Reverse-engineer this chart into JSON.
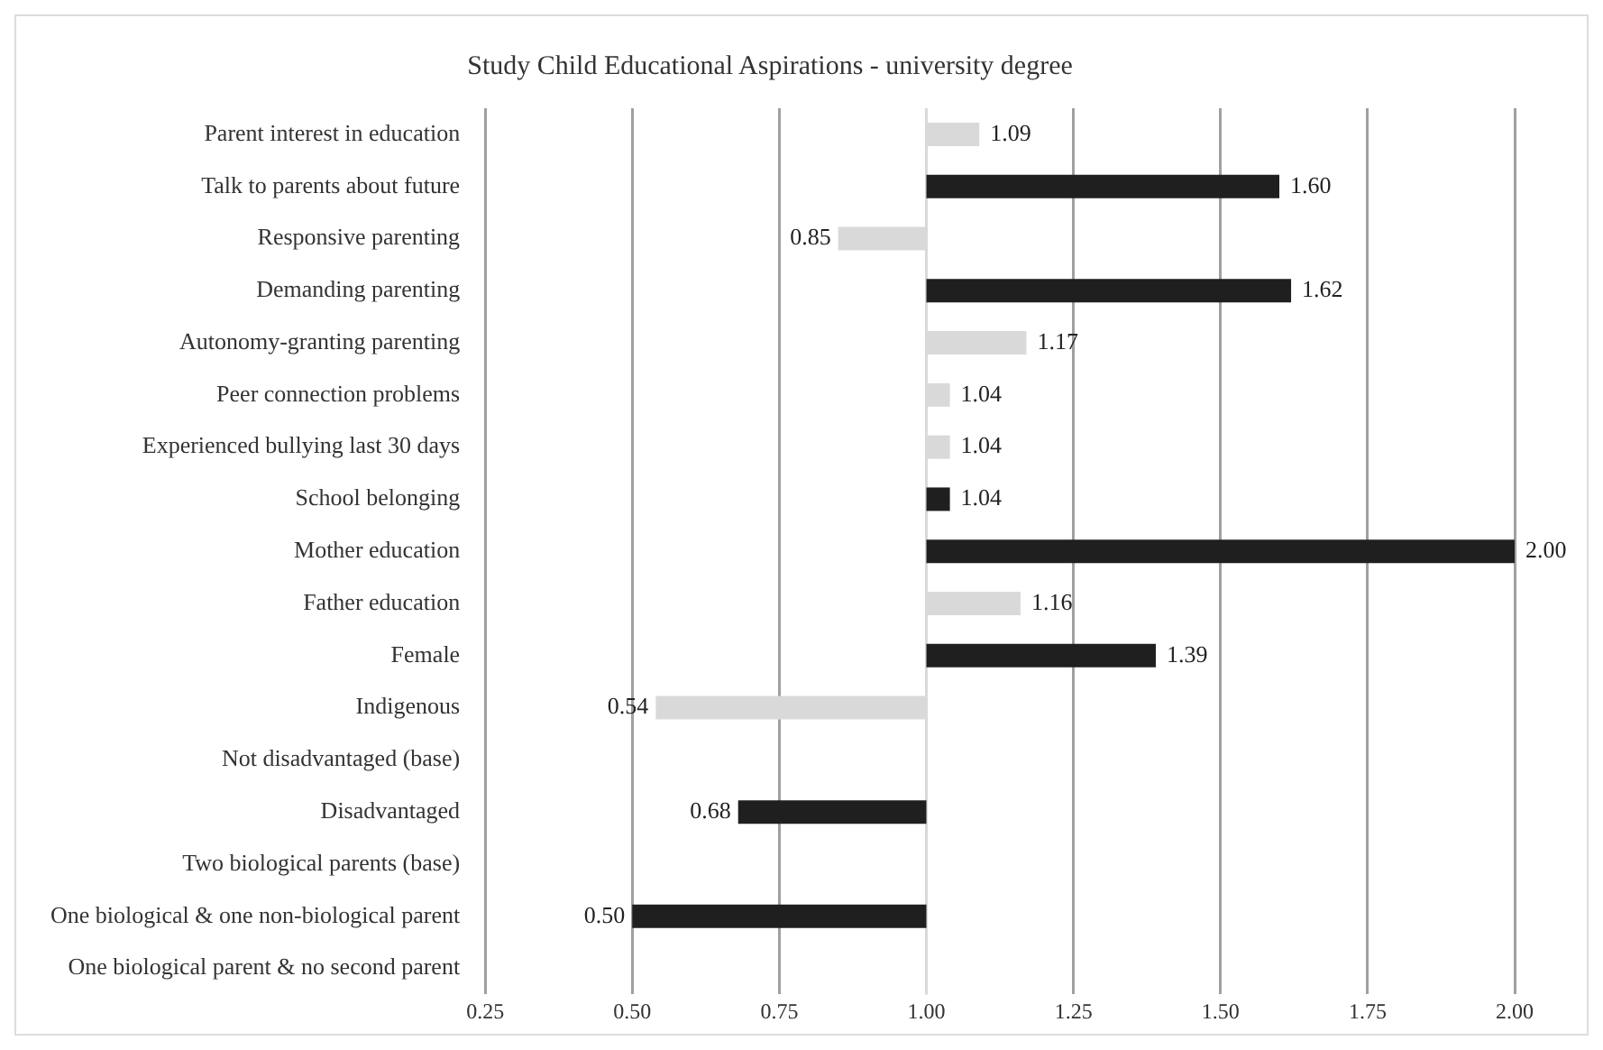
{
  "chart_data": {
    "type": "bar",
    "orientation": "horizontal",
    "title": "Study Child Educational Aspirations - university degree",
    "categories": [
      "Parent interest in education",
      "Talk to parents about future",
      "Responsive parenting",
      "Demanding parenting",
      "Autonomy-granting parenting",
      "Peer connection problems",
      "Experienced bullying last 30 days",
      "School belonging",
      "Mother education",
      "Father education",
      "Female",
      "Indigenous",
      "Not disadvantaged (base)",
      "Disadvantaged",
      "Two biological parents (base)",
      "One biological & one non-biological parent",
      "One biological parent & no second parent"
    ],
    "base": [
      1,
      1,
      1,
      1,
      1,
      1,
      1,
      1,
      1,
      1,
      1,
      1,
      null,
      1,
      null,
      1,
      null
    ],
    "values": [
      0.09,
      0.6,
      -0.15,
      0.62,
      0.17,
      0.04,
      0.04,
      0.04,
      1.0,
      0.16,
      0.39,
      -0.46,
      null,
      -0.32,
      null,
      -0.5,
      null
    ],
    "value_labels": [
      "1.09",
      "1.60",
      "0.85",
      "1.62",
      "1.17",
      "1.04",
      "1.04",
      "1.04",
      "2.00",
      "1.16",
      "1.39",
      "0.54",
      null,
      "0.68",
      null,
      "0.50",
      null
    ],
    "colors": [
      "#d9d9d9",
      "#1f1f1f",
      "#d9d9d9",
      "#1f1f1f",
      "#d9d9d9",
      "#d9d9d9",
      "#d9d9d9",
      "#1f1f1f",
      "#1f1f1f",
      "#d9d9d9",
      "#1f1f1f",
      "#d9d9d9",
      null,
      "#1f1f1f",
      null,
      "#1f1f1f",
      null
    ],
    "xlim": [
      0.25,
      2.0
    ],
    "xticks": [
      0.25,
      {
        "value": 0.5,
        "label": "0.50"
      },
      0.75,
      {
        "value": 1.0,
        "label": "1.00"
      },
      1.25,
      {
        "value": 1.5,
        "label": "1.50"
      },
      1.75,
      {
        "value": 2.0,
        "label": "2.00"
      }
    ],
    "ref_lines": [
      {
        "axis": "x",
        "value": 1,
        "color": "#d9d9d9"
      }
    ],
    "grid": "x",
    "legend": false
  }
}
